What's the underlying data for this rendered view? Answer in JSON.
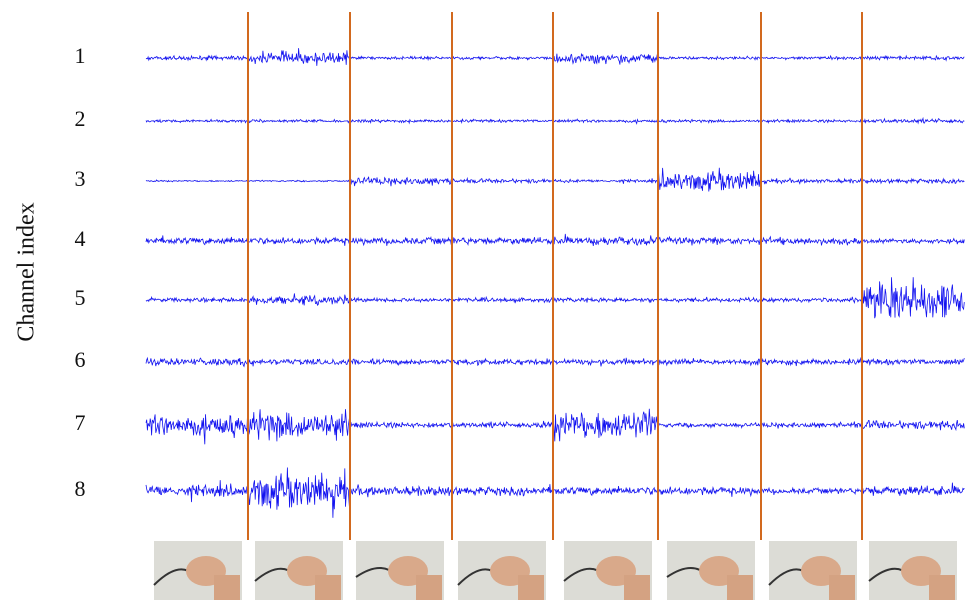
{
  "axis_label": "Channel index",
  "channels": [
    1,
    2,
    3,
    4,
    5,
    6,
    7,
    8
  ]
}
